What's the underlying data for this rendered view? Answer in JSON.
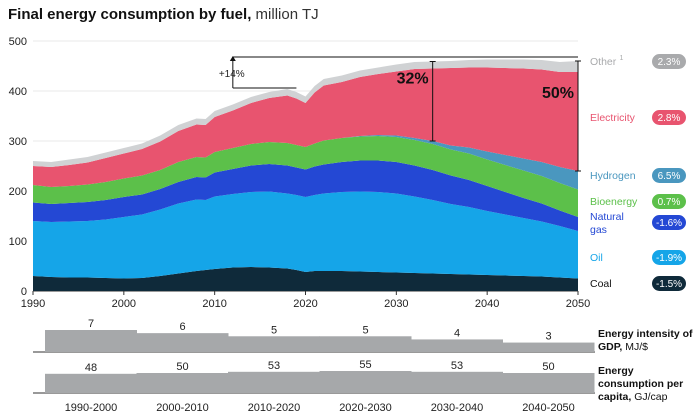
{
  "title": {
    "main": "Final energy consumption by fuel,",
    "unit": "million TJ"
  },
  "chart_data": {
    "type": "area",
    "title": "Final energy consumption by fuel, million TJ",
    "x": [
      1990,
      1992,
      1994,
      1996,
      1998,
      2000,
      2002,
      2004,
      2006,
      2008,
      2009,
      2010,
      2012,
      2014,
      2016,
      2018,
      2019,
      2020,
      2021,
      2022,
      2024,
      2026,
      2028,
      2030,
      2032,
      2034,
      2036,
      2038,
      2040,
      2042,
      2044,
      2046,
      2048,
      2050
    ],
    "ylim": [
      0,
      500
    ],
    "xlim": [
      1990,
      2050
    ],
    "yticks": [
      "0",
      "100",
      "200",
      "300",
      "400",
      "500"
    ],
    "xticks": [
      "1990",
      "2000",
      "2010",
      "2020",
      "2030",
      "2040",
      "2050"
    ],
    "series": [
      {
        "name": "Coal",
        "color": "#0f2a3a",
        "values": [
          30,
          28,
          27,
          27,
          26,
          25,
          26,
          30,
          35,
          40,
          42,
          44,
          47,
          48,
          47,
          45,
          42,
          38,
          40,
          40,
          40,
          39,
          38,
          37,
          36,
          35,
          34,
          33,
          32,
          31,
          30,
          29,
          27,
          25
        ]
      },
      {
        "name": "Oil",
        "color": "#15a5e8",
        "values": [
          110,
          110,
          112,
          113,
          117,
          123,
          127,
          133,
          140,
          143,
          140,
          145,
          147,
          150,
          152,
          150,
          150,
          150,
          152,
          155,
          158,
          160,
          160,
          158,
          153,
          147,
          140,
          135,
          128,
          122,
          116,
          110,
          103,
          95
        ]
      },
      {
        "name": "Natural gas",
        "color": "#2448d4",
        "values": [
          37,
          36,
          37,
          38,
          39,
          40,
          40,
          41,
          43,
          45,
          45,
          48,
          50,
          53,
          55,
          56,
          55,
          55,
          57,
          58,
          60,
          62,
          63,
          63,
          62,
          60,
          57,
          54,
          50,
          45,
          40,
          36,
          31,
          28
        ]
      },
      {
        "name": "Bioenergy",
        "color": "#5cc04a",
        "values": [
          35,
          34,
          34,
          35,
          36,
          37,
          38,
          38,
          40,
          40,
          40,
          41,
          42,
          43,
          44,
          45,
          45,
          45,
          46,
          48,
          48,
          48,
          49,
          50,
          51,
          52,
          52,
          53,
          53,
          54,
          55,
          55,
          55,
          55
        ]
      },
      {
        "name": "Hydrogen",
        "color": "#4a97bf",
        "values": [
          0,
          0,
          0,
          0,
          0,
          0,
          0,
          0,
          0,
          0,
          0,
          0,
          0,
          0,
          0,
          0,
          0,
          0,
          0,
          0,
          0,
          1,
          2,
          3,
          4,
          6,
          8,
          12,
          16,
          20,
          24,
          28,
          32,
          37
        ]
      },
      {
        "name": "Electricity",
        "color": "#e8546f",
        "values": [
          38,
          40,
          42,
          44,
          48,
          50,
          53,
          57,
          62,
          65,
          65,
          70,
          75,
          82,
          88,
          95,
          93,
          88,
          102,
          110,
          112,
          118,
          122,
          128,
          138,
          145,
          155,
          160,
          168,
          174,
          180,
          185,
          190,
          198
        ]
      },
      {
        "name": "Other",
        "color": "#d0d2d4",
        "values": [
          10,
          10,
          11,
          11,
          11,
          11,
          11,
          12,
          12,
          12,
          12,
          12,
          12,
          12,
          12,
          13,
          13,
          13,
          13,
          13,
          13,
          13,
          13,
          14,
          14,
          14,
          14,
          15,
          16,
          17,
          18,
          19,
          20,
          22
        ]
      }
    ],
    "legend": [
      {
        "label": "Other",
        "sup": "1",
        "badge": "2.3%"
      },
      {
        "label": "Electricity",
        "sup": "",
        "badge": "2.8%"
      },
      {
        "label": "Hydrogen",
        "sup": "",
        "badge": "6.5%"
      },
      {
        "label": "Bioenergy",
        "sup": "",
        "badge": "0.7%"
      },
      {
        "label": "Natural gas",
        "sup": "",
        "badge": "-1.6%"
      },
      {
        "label": "Oil",
        "sup": "",
        "badge": "-1.9%"
      },
      {
        "label": "Coal",
        "sup": "",
        "badge": "-1.5%"
      }
    ],
    "badge_colors": [
      "#a9aaac",
      "#e8546f",
      "#4a97bf",
      "#5cc04a",
      "#2448d4",
      "#15a5e8",
      "#0f2a3a"
    ],
    "legend_colors": [
      "#a9aaac",
      "#e8546f",
      "#4a97bf",
      "#5cc04a",
      "#2448d4",
      "#15a5e8",
      "#111111"
    ],
    "annotations": {
      "growth": "+14%",
      "share_2035": "32%",
      "share_2050": "50%"
    },
    "panels": [
      {
        "label": "Energy intensity of GDP,",
        "unit": "MJ/$",
        "values": [
          7,
          6,
          5,
          5,
          4,
          3
        ],
        "ylim": [
          0,
          7
        ]
      },
      {
        "label": "Energy consumption per capita,",
        "unit": "GJ/cap",
        "values": [
          48,
          50,
          53,
          55,
          53,
          50
        ],
        "ylim": [
          0,
          55
        ]
      }
    ],
    "periods": [
      "1990-2000",
      "2000-2010",
      "2010-2020",
      "2020-2030",
      "2030-2040",
      "2040-2050"
    ]
  }
}
